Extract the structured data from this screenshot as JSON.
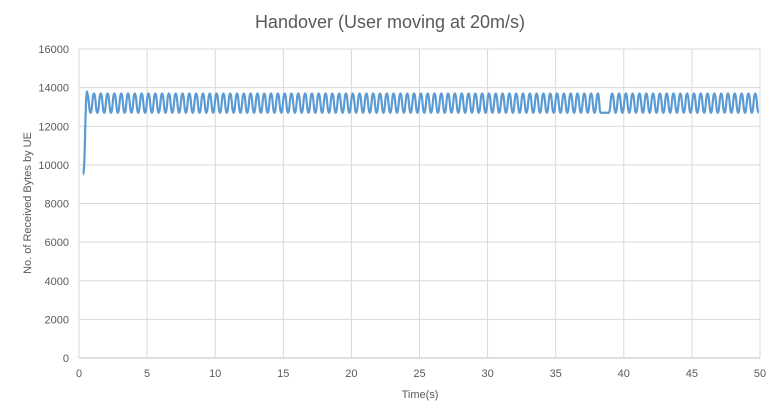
{
  "chart_data": {
    "type": "line",
    "title": "Handover (User moving at 20m/s)",
    "xlabel": "Time(s)",
    "ylabel": "No. of Received Bytes by UE",
    "xlim": [
      0,
      50
    ],
    "ylim": [
      0,
      16000
    ],
    "xticks": [
      0,
      5,
      10,
      15,
      20,
      25,
      30,
      35,
      40,
      45,
      50
    ],
    "yticks": [
      0,
      2000,
      4000,
      6000,
      8000,
      10000,
      12000,
      14000,
      16000
    ],
    "grid": "vertical and horizontal major gridlines",
    "legend": "none",
    "series": [
      {
        "color": "#5b9bd5",
        "description_points": {
          "start": [
            [
              0.3,
              9500
            ],
            [
              0.6,
              13800
            ]
          ],
          "oscillation": {
            "x_start": 0.6,
            "x_end": 50,
            "period": 0.5,
            "min": 12700,
            "max": 13700
          },
          "flat_gap": {
            "x_start": 38.3,
            "x_end": 38.9,
            "value": 12700
          }
        }
      }
    ]
  }
}
